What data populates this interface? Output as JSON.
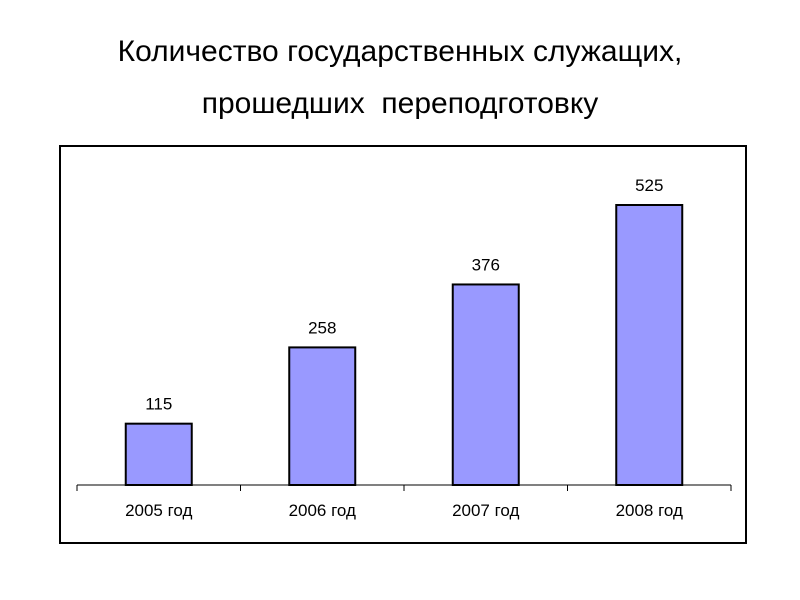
{
  "slide": {
    "title_line1": "Количество государственных служащих,",
    "title_line2": "прошедших  переподготовку"
  },
  "colors": {
    "bar_fill": "#9999ff",
    "bar_stroke": "#000000",
    "axis": "#000000",
    "frame": "#000000"
  },
  "chart_data": {
    "type": "bar",
    "title": "",
    "categories": [
      "2005 год",
      "2006 год",
      "2007 год",
      "2008 год"
    ],
    "series": [
      {
        "values": [
          115,
          258,
          376,
          525
        ]
      }
    ],
    "data_labels": [
      "115",
      "258",
      "376",
      "525"
    ],
    "xlabel": "",
    "ylabel": "",
    "ylim": [
      0,
      600
    ],
    "grid": false,
    "legend": "none"
  }
}
